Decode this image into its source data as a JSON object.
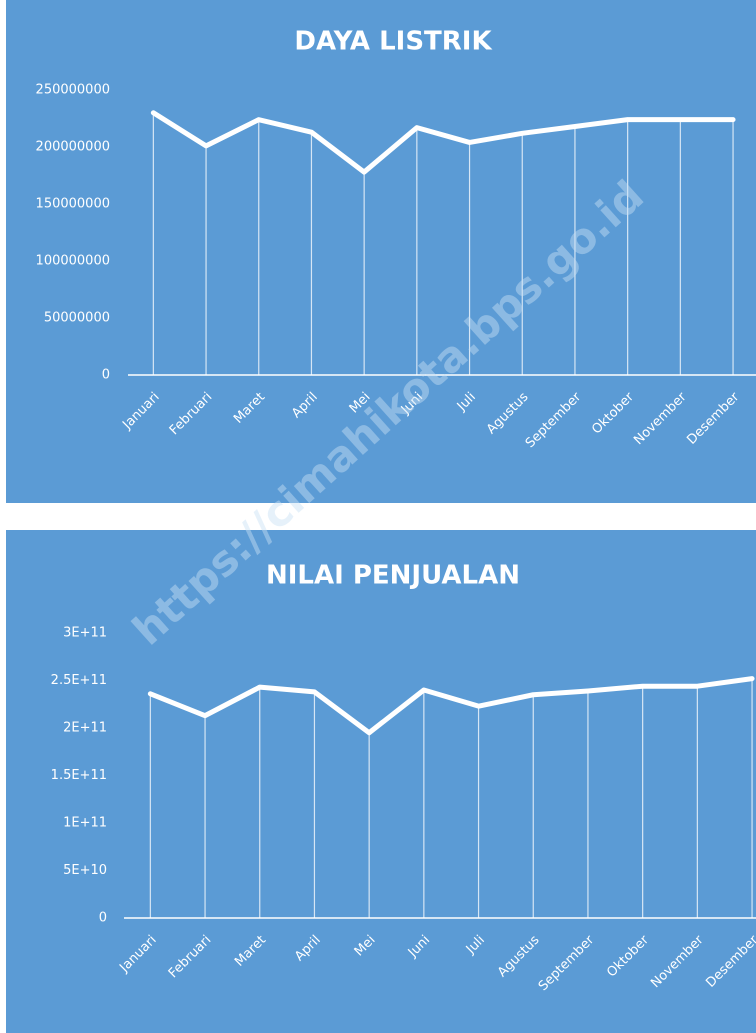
{
  "chart_data": [
    {
      "type": "line",
      "title": "DAYA LISTRIK",
      "categories": [
        "Januari",
        "Februari",
        "Maret",
        "April",
        "Mei",
        "Juni",
        "Juli",
        "Agustus",
        "September",
        "Oktober",
        "November",
        "Desember"
      ],
      "values": [
        230000000,
        201000000,
        224000000,
        213000000,
        178000000,
        217000000,
        204000000,
        212000000,
        218000000,
        224000000,
        224000000,
        224000000
      ],
      "color": "#ffffff",
      "ylim": [
        0,
        250000000
      ],
      "yticks": [
        0,
        50000000,
        100000000,
        150000000,
        200000000,
        250000000
      ]
    },
    {
      "type": "line",
      "title": "NILAI PENJUALAN",
      "categories": [
        "Januari",
        "Februari",
        "Maret",
        "April",
        "Mei",
        "Juni",
        "Juli",
        "Agustus",
        "September",
        "Oktober",
        "November",
        "Desember"
      ],
      "values": [
        236000000000,
        213000000000,
        243000000000,
        238000000000,
        195000000000,
        240000000000,
        223000000000,
        235000000000,
        239000000000,
        244000000000,
        244000000000,
        252000000000
      ],
      "color": "#ffffff",
      "ylim": [
        0,
        300000000000
      ],
      "yticks": [
        0,
        {
          "value": 50000000000,
          "label": "5E+10"
        },
        {
          "value": 100000000000,
          "label": "1E+11"
        },
        {
          "value": 150000000000,
          "label": "1.5E+11"
        },
        {
          "value": 200000000000,
          "label": "2E+11"
        },
        {
          "value": 250000000000,
          "label": "2.5E+11"
        },
        {
          "value": 300000000000,
          "label": "3E+11"
        }
      ]
    }
  ],
  "watermark": "https://cimahikota.bps.go.id"
}
